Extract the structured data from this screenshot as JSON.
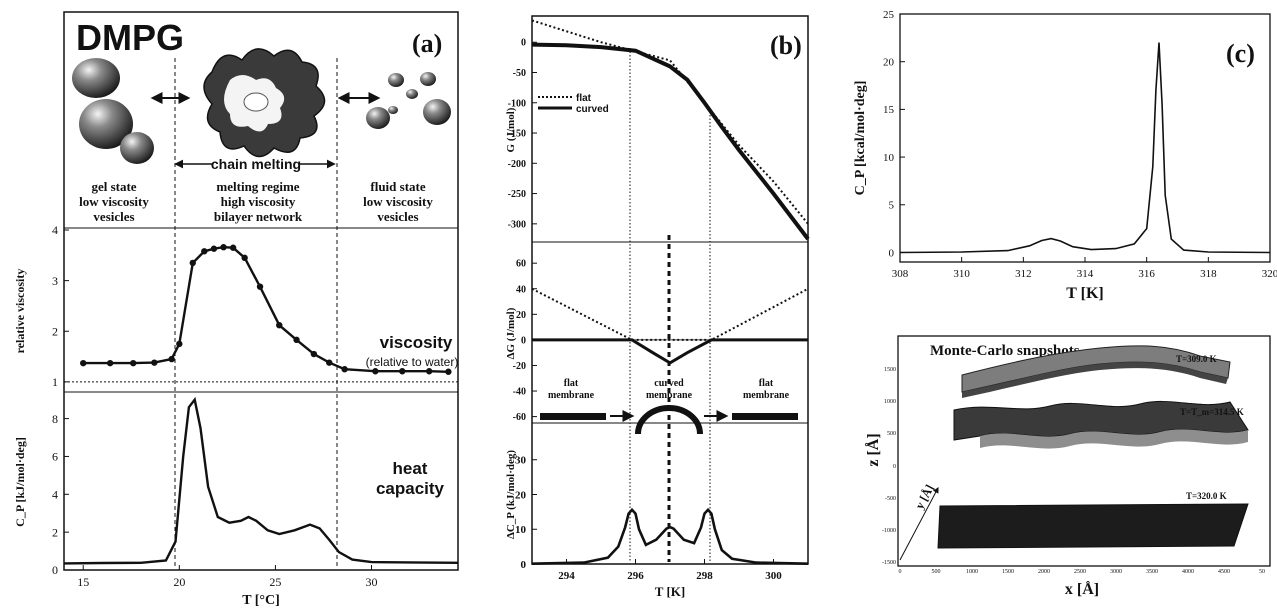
{
  "panels": {
    "a": {
      "label": "(a)",
      "title": "DMPG",
      "chain_melting": "chain melting",
      "states": {
        "gel": [
          "gel state",
          "low viscosity",
          "vesicles"
        ],
        "melting": [
          "melting regime",
          "high viscosity",
          "bilayer network"
        ],
        "fluid": [
          "fluid state",
          "low viscosity",
          "vesicles"
        ]
      },
      "viscosity_label": "viscosity",
      "viscosity_sublabel": "(relative to water)",
      "heat_label_1": "heat",
      "heat_label_2": "capacity"
    },
    "b": {
      "label": "(b)",
      "legend": [
        "flat",
        "curved"
      ],
      "membrane_labels": [
        [
          "flat",
          "membrane"
        ],
        [
          "curved",
          "membrane"
        ],
        [
          "flat",
          "membrane"
        ]
      ]
    },
    "c": {
      "label": "(c)",
      "snapshots_title": "Monte-Carlo snapshots",
      "snapshot_labels": [
        "T=309.0 K",
        "T=T_m=314.5 K",
        "T=320.0 K"
      ],
      "snapshot_xlabel": "x  [Å]",
      "snapshot_ylabel": "z  [Å]",
      "snapshot_y_axis_label": "y [Å]",
      "snapshot_xticks": [
        "0",
        "500",
        "1000",
        "1500",
        "2000",
        "2500",
        "3000",
        "3500",
        "4000",
        "4500",
        "50"
      ],
      "snapshot_zticks": [
        "1500",
        "1000",
        "500",
        "0",
        "-500",
        "-1000",
        "-1500"
      ]
    }
  },
  "chart_data": [
    {
      "id": "a-viscosity",
      "type": "line",
      "ylabel": "relative viscosity",
      "xlim": [
        14,
        34.5
      ],
      "ylim": [
        0.8,
        4
      ],
      "yticks": [
        1,
        2,
        3,
        4
      ],
      "reference_line_y": 1,
      "x": [
        15,
        16.4,
        17.6,
        18.7,
        19.6,
        20.0,
        20.7,
        21.3,
        21.8,
        22.3,
        22.8,
        23.4,
        24.2,
        25.2,
        26.1,
        27.0,
        27.8,
        28.6,
        30.2,
        31.6,
        33.0,
        34.0
      ],
      "y": [
        1.37,
        1.37,
        1.37,
        1.38,
        1.45,
        1.75,
        3.35,
        3.58,
        3.63,
        3.66,
        3.65,
        3.45,
        2.88,
        2.12,
        1.83,
        1.55,
        1.38,
        1.25,
        1.21,
        1.21,
        1.21,
        1.2
      ]
    },
    {
      "id": "a-heat-capacity",
      "type": "line",
      "ylabel": "C_P [kJ/mol·deg]",
      "xlabel": "T [°C]",
      "xlim": [
        14,
        34.5
      ],
      "ylim": [
        0,
        9.3
      ],
      "xticks": [
        15,
        20,
        25,
        30
      ],
      "yticks": [
        0,
        2,
        4,
        6,
        8
      ],
      "x": [
        14,
        16,
        18,
        19.3,
        19.8,
        20.2,
        20.5,
        20.8,
        21.1,
        21.5,
        22.0,
        22.6,
        23.2,
        23.6,
        24.0,
        24.6,
        25.2,
        26.0,
        26.8,
        27.3,
        27.8,
        28.3,
        29.0,
        30.0,
        32.0,
        34.5
      ],
      "y": [
        0.35,
        0.37,
        0.38,
        0.5,
        1.5,
        6.0,
        8.6,
        9.0,
        7.5,
        4.4,
        2.8,
        2.5,
        2.6,
        2.8,
        2.6,
        2.1,
        1.9,
        2.1,
        2.4,
        2.2,
        1.6,
        0.95,
        0.55,
        0.42,
        0.4,
        0.38
      ]
    },
    {
      "id": "b-free-energy",
      "type": "line",
      "ylabel": "G (J/mol)",
      "xlim": [
        293,
        301
      ],
      "ylim": [
        -330,
        40
      ],
      "yticks": [
        0,
        -50,
        -100,
        -150,
        -200,
        -250,
        -300
      ],
      "series": [
        {
          "name": "flat",
          "style": "dotted",
          "x": [
            293,
            295,
            296,
            297,
            298,
            299,
            300,
            301
          ],
          "y": [
            36,
            0,
            -15,
            -30,
            -100,
            -170,
            -230,
            -300
          ]
        },
        {
          "name": "curved",
          "style": "solid",
          "x": [
            293,
            294,
            295,
            296,
            297,
            297.5,
            298,
            298.5,
            299,
            300,
            301
          ],
          "y": [
            -4,
            -5,
            -8,
            -14,
            -40,
            -62,
            -100,
            -140,
            -178,
            -250,
            -325
          ]
        }
      ]
    },
    {
      "id": "b-delta-g",
      "type": "line",
      "ylabel": "ΔG (J/mol)",
      "xlim": [
        293,
        301
      ],
      "ylim": [
        -65,
        75
      ],
      "yticks": [
        60,
        40,
        20,
        0,
        -20,
        -40,
        -60
      ],
      "series": [
        {
          "style": "dotted",
          "x": [
            293,
            295.9,
            298.2,
            301
          ],
          "y": [
            40,
            0,
            0,
            40
          ]
        },
        {
          "style": "solid",
          "x": [
            293,
            295.9,
            296.5,
            297.0,
            297.5,
            298.2,
            301
          ],
          "y": [
            0,
            0,
            -10,
            -18,
            -10,
            0,
            0
          ]
        }
      ]
    },
    {
      "id": "b-delta-cp",
      "type": "line",
      "ylabel": "ΔC_P (kJ/mol·deg)",
      "xlabel": "T [K]",
      "xlim": [
        293,
        301
      ],
      "ylim": [
        0,
        40
      ],
      "xticks": [
        294,
        296,
        298,
        300
      ],
      "yticks": [
        0,
        10,
        20,
        30
      ],
      "x": [
        293,
        294.5,
        295.2,
        295.5,
        295.7,
        295.8,
        295.9,
        296.0,
        296.1,
        296.3,
        296.6,
        296.9,
        297.0,
        297.1,
        297.4,
        297.7,
        297.9,
        298.0,
        298.1,
        298.2,
        298.3,
        298.5,
        298.8,
        299.5,
        301
      ],
      "y": [
        0.1,
        0.4,
        1.8,
        5.0,
        10.5,
        14.5,
        15.6,
        14.5,
        10.0,
        5.5,
        7.0,
        10.2,
        10.6,
        10.2,
        7.0,
        6.0,
        10.5,
        14.5,
        15.6,
        14.5,
        10.0,
        4.0,
        1.5,
        0.4,
        0.1
      ]
    },
    {
      "id": "c-heat-capacity",
      "type": "line",
      "ylabel": "C_P [kcal/mol·deg]",
      "xlabel": "T [K]",
      "xlim": [
        308,
        320
      ],
      "ylim": [
        -1,
        25
      ],
      "xticks": [
        308,
        310,
        312,
        314,
        316,
        318,
        320
      ],
      "yticks": [
        0,
        5,
        10,
        15,
        20,
        25
      ],
      "x": [
        308,
        310,
        311.5,
        312.2,
        312.6,
        312.9,
        313.2,
        313.6,
        314.2,
        315.0,
        315.6,
        316.0,
        316.2,
        316.3,
        316.4,
        316.5,
        316.6,
        316.8,
        317.2,
        318,
        320
      ],
      "y": [
        0,
        0.05,
        0.2,
        0.7,
        1.25,
        1.45,
        1.2,
        0.6,
        0.3,
        0.4,
        0.9,
        2.5,
        9.0,
        17.0,
        22.0,
        15.5,
        6.0,
        1.4,
        0.25,
        0.05,
        0
      ]
    }
  ]
}
